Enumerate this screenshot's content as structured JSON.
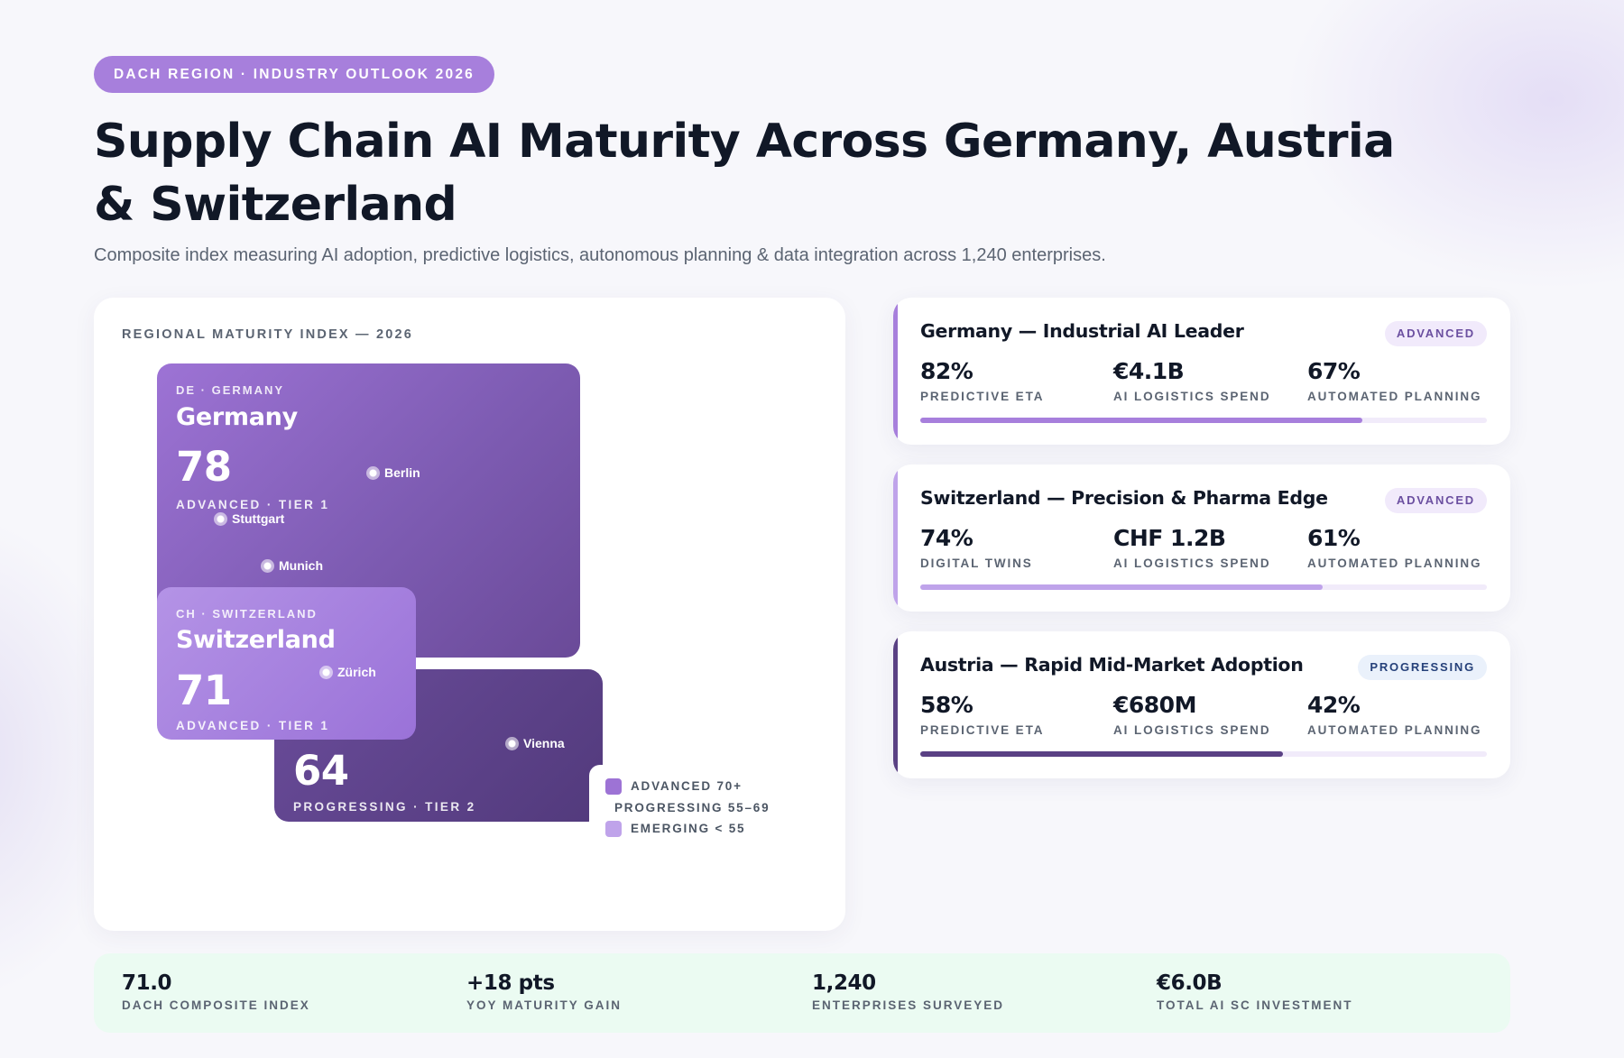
{
  "header": {
    "pill": "DACH REGION · INDUSTRY OUTLOOK 2026",
    "title": "Supply Chain AI Maturity Across Germany, Austria & Switzerland",
    "subtitle": "Composite index measuring AI adoption, predictive logistics, autonomous planning & data integration across 1,240 enterprises."
  },
  "map": {
    "label": "REGIONAL MATURITY INDEX — 2026",
    "regions": {
      "germany": {
        "code": "DE · GERMANY",
        "name": "Germany",
        "score": "78",
        "tier": "ADVANCED · TIER 1"
      },
      "switzerland": {
        "code": "CH · SWITZERLAND",
        "name": "Switzerland",
        "score": "71",
        "tier": "ADVANCED · TIER 1"
      },
      "austria": {
        "score": "64",
        "tier": "PROGRESSING · TIER 2"
      }
    },
    "cities": {
      "berlin": "Berlin",
      "stuttgart": "Stuttgart",
      "munich": "Munich",
      "zurich": "Zürich",
      "vienna": "Vienna"
    },
    "legend": [
      {
        "label": "ADVANCED 70+",
        "color": "#9d73d5"
      },
      {
        "label": "PROGRESSING 55–69",
        "color": "#5a4184"
      },
      {
        "label": "EMERGING < 55",
        "color": "#bfa3ea"
      }
    ]
  },
  "cards": [
    {
      "title": "Germany — Industrial AI Leader",
      "badge": "ADVANCED",
      "accent": "#a77fdc",
      "progress": 0.78,
      "metrics": [
        {
          "value": "82%",
          "label": "PREDICTIVE ETA"
        },
        {
          "value": "€4.1B",
          "label": "AI LOGISTICS SPEND"
        },
        {
          "value": "67%",
          "label": "AUTOMATED PLANNING"
        }
      ]
    },
    {
      "title": "Switzerland — Precision & Pharma Edge",
      "badge": "ADVANCED",
      "accent": "#bfa3ea",
      "progress": 0.71,
      "metrics": [
        {
          "value": "74%",
          "label": "DIGITAL TWINS"
        },
        {
          "value": "CHF 1.2B",
          "label": "AI LOGISTICS SPEND"
        },
        {
          "value": "61%",
          "label": "AUTOMATED PLANNING"
        }
      ]
    },
    {
      "title": "Austria — Rapid Mid-Market Adoption",
      "badge": "PROGRESSING",
      "accent": "#5a4184",
      "progress": 0.64,
      "metrics": [
        {
          "value": "58%",
          "label": "PREDICTIVE ETA"
        },
        {
          "value": "€680M",
          "label": "AI LOGISTICS SPEND"
        },
        {
          "value": "42%",
          "label": "AUTOMATED PLANNING"
        }
      ]
    }
  ],
  "stats": [
    {
      "value": "71.0",
      "label": "DACH COMPOSITE INDEX"
    },
    {
      "value": "+18 pts",
      "label": "YOY MATURITY GAIN"
    },
    {
      "value": "1,240",
      "label": "ENTERPRISES SURVEYED"
    },
    {
      "value": "€6.0B",
      "label": "TOTAL AI SC INVESTMENT"
    }
  ]
}
